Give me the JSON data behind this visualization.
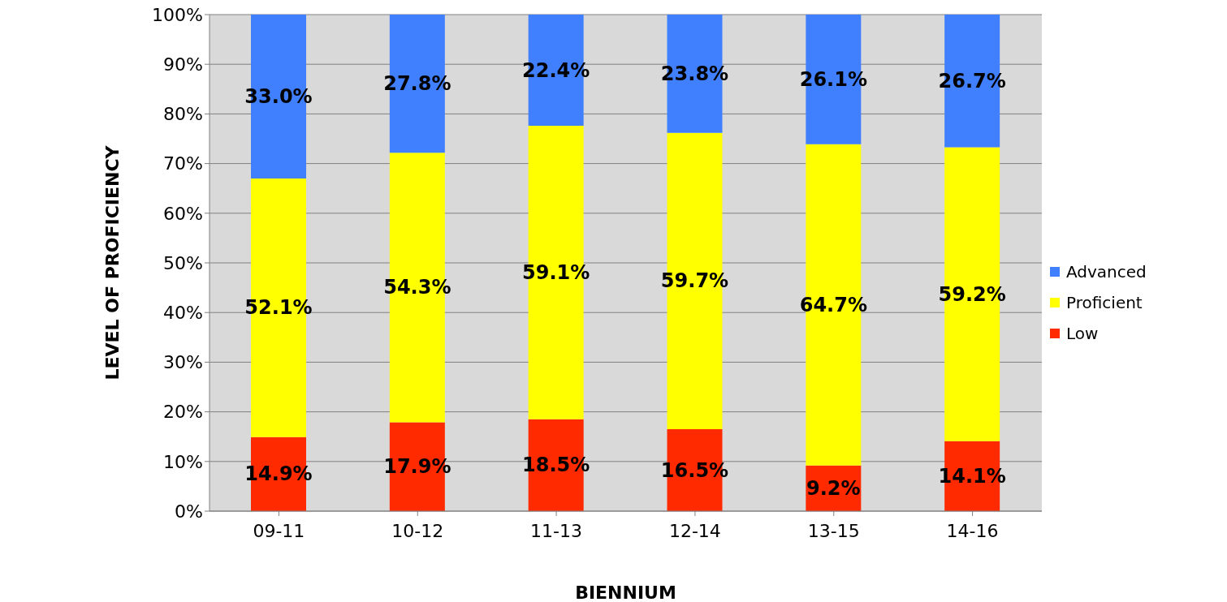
{
  "chart_data": {
    "type": "bar",
    "stacked": true,
    "xlabel": "BIENNIUM",
    "ylabel": "LEVEL OF PROFICIENCY",
    "categories": [
      "09-11",
      "10-12",
      "11-13",
      "12-14",
      "13-15",
      "14-16"
    ],
    "series": [
      {
        "name": "Low",
        "color": "#ff2a00",
        "values": [
          14.9,
          17.9,
          18.5,
          16.5,
          9.2,
          14.1
        ],
        "value_labels": [
          "14.9%",
          "17.9%",
          "18.5%",
          "16.5%",
          "9.2%",
          "14.1%"
        ]
      },
      {
        "name": "Proficient",
        "color": "#ffff00",
        "values": [
          52.1,
          54.3,
          59.1,
          59.7,
          64.7,
          59.2
        ],
        "value_labels": [
          "52.1%",
          "54.3%",
          "59.1%",
          "59.7%",
          "64.7%",
          "59.2%"
        ]
      },
      {
        "name": "Advanced",
        "color": "#4080ff",
        "values": [
          33.0,
          27.8,
          22.4,
          23.8,
          26.1,
          26.7
        ],
        "value_labels": [
          "33.0%",
          "27.8%",
          "22.4%",
          "23.8%",
          "26.1%",
          "26.7%"
        ]
      }
    ],
    "ylim": [
      0,
      100
    ],
    "yticks": [
      {
        "value": 0,
        "label": "0%"
      },
      {
        "value": 10,
        "label": "10%"
      },
      {
        "value": 20,
        "label": "20%"
      },
      {
        "value": 30,
        "label": "30%"
      },
      {
        "value": 40,
        "label": "40%"
      },
      {
        "value": 50,
        "label": "50%"
      },
      {
        "value": 60,
        "label": "60%"
      },
      {
        "value": 70,
        "label": "70%"
      },
      {
        "value": 80,
        "label": "80%"
      },
      {
        "value": 90,
        "label": "90%"
      },
      {
        "value": 100,
        "label": "100%"
      }
    ],
    "grid": "y",
    "legend": "right"
  }
}
